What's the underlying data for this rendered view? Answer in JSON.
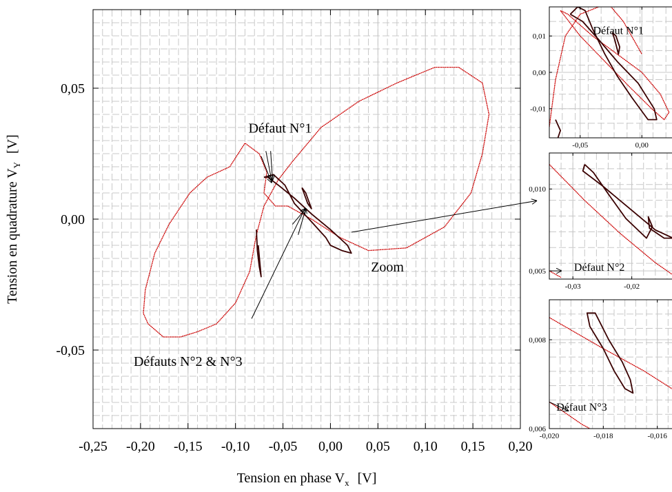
{
  "colors": {
    "curve": "#cc0000",
    "curve_dark": "#3a0000",
    "grid": "#c8c8c8",
    "axis": "#000000"
  },
  "chart_data": [
    {
      "type": "line",
      "panel": "main",
      "xlabel": "Tension en phase V",
      "xlabel_sub": "x",
      "xlabel_unit": "[V]",
      "ylabel": "Tension en quadrature V",
      "ylabel_sub": "Y",
      "ylabel_unit": "[V]",
      "xlim": [
        -0.25,
        0.2
      ],
      "ylim": [
        -0.08,
        0.08
      ],
      "xticks": [
        {
          "v": -0.25,
          "label": "-0,25"
        },
        {
          "v": -0.2,
          "label": "-0,20"
        },
        {
          "v": -0.15,
          "label": "-0,15"
        },
        {
          "v": -0.1,
          "label": "-0,10"
        },
        {
          "v": -0.05,
          "label": "-0,05"
        },
        {
          "v": 0.0,
          "label": "0,00"
        },
        {
          "v": 0.05,
          "label": "0,05"
        },
        {
          "v": 0.1,
          "label": "0,10"
        },
        {
          "v": 0.15,
          "label": "0,15"
        },
        {
          "v": 0.2,
          "label": "0,20"
        }
      ],
      "yticks": [
        {
          "v": -0.05,
          "label": "-0,05"
        },
        {
          "v": 0.0,
          "label": "0,00"
        },
        {
          "v": 0.05,
          "label": "0,05"
        }
      ],
      "grid": true,
      "series": [
        {
          "color": "#cc0000",
          "points": [
            [
              -0.067,
              0.018
            ],
            [
              -0.075,
              0.025
            ],
            [
              -0.09,
              0.029
            ],
            [
              -0.106,
              0.02
            ],
            [
              -0.13,
              0.016
            ],
            [
              -0.148,
              0.01
            ],
            [
              -0.17,
              -0.002
            ],
            [
              -0.185,
              -0.013
            ],
            [
              -0.195,
              -0.027
            ],
            [
              -0.197,
              -0.036
            ],
            [
              -0.192,
              -0.04
            ],
            [
              -0.176,
              -0.045
            ],
            [
              -0.158,
              -0.045
            ],
            [
              -0.14,
              -0.043
            ],
            [
              -0.12,
              -0.04
            ],
            [
              -0.1,
              -0.032
            ],
            [
              -0.085,
              -0.02
            ],
            [
              -0.08,
              -0.01
            ],
            [
              -0.078,
              -0.006
            ],
            [
              -0.07,
              0.005
            ],
            [
              -0.055,
              0.015
            ],
            [
              -0.04,
              0.022
            ],
            [
              -0.01,
              0.035
            ],
            [
              0.03,
              0.045
            ],
            [
              0.07,
              0.052
            ],
            [
              0.11,
              0.058
            ],
            [
              0.135,
              0.058
            ],
            [
              0.16,
              0.052
            ],
            [
              0.167,
              0.04
            ],
            [
              0.16,
              0.025
            ],
            [
              0.148,
              0.01
            ],
            [
              0.12,
              -0.003
            ],
            [
              0.08,
              -0.011
            ],
            [
              0.04,
              -0.012
            ],
            [
              0.01,
              -0.007
            ],
            [
              -0.02,
              0.0
            ],
            [
              -0.045,
              0.005
            ],
            [
              -0.058,
              0.005
            ],
            [
              -0.07,
              0.01
            ],
            [
              -0.067,
              0.018
            ]
          ]
        },
        {
          "color": "#3a0000",
          "points": [
            [
              -0.07,
              0.016
            ],
            [
              -0.06,
              0.017
            ],
            [
              -0.048,
              0.013
            ],
            [
              -0.038,
              0.006
            ],
            [
              -0.02,
              -0.001
            ],
            [
              -0.005,
              -0.007
            ],
            [
              0.0,
              -0.01
            ],
            [
              0.012,
              -0.012
            ],
            [
              0.022,
              -0.013
            ],
            [
              0.018,
              -0.01
            ],
            [
              0.0,
              -0.004
            ],
            [
              -0.02,
              0.002
            ],
            [
              -0.038,
              0.008
            ],
            [
              -0.055,
              0.013
            ],
            [
              -0.066,
              0.016
            ],
            [
              -0.07,
              0.016
            ]
          ]
        },
        {
          "color": "#3a0000",
          "points": [
            [
              -0.03,
              0.012
            ],
            [
              -0.026,
              0.01
            ],
            [
              -0.022,
              0.006
            ],
            [
              -0.02,
              0.004
            ],
            [
              -0.024,
              0.006
            ],
            [
              -0.028,
              0.01
            ],
            [
              -0.03,
              0.012
            ]
          ]
        },
        {
          "color": "#3a0000",
          "points": [
            [
              -0.078,
              -0.004
            ],
            [
              -0.077,
              -0.012
            ],
            [
              -0.075,
              -0.018
            ],
            [
              -0.073,
              -0.022
            ],
            [
              -0.074,
              -0.018
            ],
            [
              -0.076,
              -0.01
            ]
          ]
        }
      ],
      "annotations": [
        {
          "text": "Défaut N°1",
          "x": -0.053,
          "y": 0.033
        },
        {
          "text": "Défauts N°2 & N°3",
          "x": -0.15,
          "y": -0.056
        },
        {
          "text": "Zoom",
          "x": 0.06,
          "y": -0.02
        }
      ],
      "arrows": [
        {
          "x1": -0.073,
          "y1": 0.024,
          "x2": -0.062,
          "y2": 0.014
        },
        {
          "x1": -0.063,
          "y1": 0.026,
          "x2": -0.061,
          "y2": 0.015
        },
        {
          "x1": -0.068,
          "y1": 0.026,
          "x2": -0.062,
          "y2": 0.015
        },
        {
          "x1": -0.083,
          "y1": -0.038,
          "x2": -0.027,
          "y2": 0.004
        },
        {
          "x1": -0.04,
          "y1": -0.002,
          "x2": -0.026,
          "y2": 0.004
        },
        {
          "x1": -0.034,
          "y1": -0.006,
          "x2": -0.026,
          "y2": 0.004
        },
        {
          "x1": 0.022,
          "y1": -0.005,
          "x2": 0.217,
          "y2": 0.007
        }
      ]
    },
    {
      "type": "line",
      "panel": "zoom1",
      "xlim": [
        -0.075,
        0.03
      ],
      "ylim": [
        -0.018,
        0.018
      ],
      "xticks": [
        {
          "v": -0.05,
          "label": "-0,05"
        },
        {
          "v": 0.0,
          "label": "0,00"
        }
      ],
      "yticks": [
        {
          "v": -0.01,
          "label": "-0,01"
        },
        {
          "v": 0.0,
          "label": "0,00"
        },
        {
          "v": 0.01,
          "label": "0,01"
        }
      ],
      "grid": true,
      "series": [
        {
          "color": "#cc0000",
          "points": [
            [
              -0.075,
              -0.015
            ],
            [
              -0.07,
              -0.002
            ],
            [
              -0.062,
              0.01
            ],
            [
              -0.05,
              0.016
            ],
            [
              -0.035,
              0.018
            ],
            [
              -0.02,
              0.02
            ]
          ]
        },
        {
          "color": "#cc0000",
          "points": [
            [
              -0.03,
              0.02
            ],
            [
              -0.015,
              0.014
            ],
            [
              0.0,
              0.005
            ]
          ]
        },
        {
          "color": "#cc0000",
          "points": [
            [
              -0.066,
              0.017
            ],
            [
              -0.05,
              0.01
            ],
            [
              -0.03,
              0.003
            ],
            [
              -0.01,
              -0.004
            ],
            [
              0.008,
              -0.01
            ],
            [
              0.018,
              -0.013
            ],
            [
              0.022,
              -0.011
            ],
            [
              0.015,
              -0.006
            ],
            [
              0.0,
              0.0
            ],
            [
              -0.02,
              0.005
            ],
            [
              -0.04,
              0.01
            ],
            [
              -0.06,
              0.016
            ],
            [
              -0.066,
              0.017
            ]
          ]
        },
        {
          "color": "#3a0000",
          "points": [
            [
              -0.07,
              -0.013
            ],
            [
              -0.066,
              -0.016
            ],
            [
              -0.068,
              -0.018
            ]
          ]
        },
        {
          "color": "#3a0000",
          "points": [
            [
              -0.058,
              0.016
            ],
            [
              -0.052,
              0.018
            ],
            [
              -0.046,
              0.017
            ],
            [
              -0.04,
              0.012
            ],
            [
              -0.03,
              0.005
            ],
            [
              -0.02,
              -0.001
            ],
            [
              -0.008,
              -0.007
            ],
            [
              0.005,
              -0.013
            ],
            [
              0.012,
              -0.013
            ],
            [
              0.01,
              -0.01
            ],
            [
              -0.003,
              -0.003
            ],
            [
              -0.02,
              0.003
            ],
            [
              -0.035,
              0.009
            ],
            [
              -0.048,
              0.014
            ],
            [
              -0.058,
              0.016
            ]
          ]
        },
        {
          "color": "#3a0000",
          "points": [
            [
              -0.024,
              0.011
            ],
            [
              -0.022,
              0.009
            ],
            [
              -0.019,
              0.005
            ],
            [
              -0.018,
              0.007
            ],
            [
              -0.021,
              0.01
            ],
            [
              -0.024,
              0.011
            ]
          ]
        }
      ],
      "annotations": [
        {
          "text": "Défaut N°1",
          "x": -0.019,
          "y": 0.0105
        }
      ],
      "arrows": []
    },
    {
      "type": "line",
      "panel": "zoom2",
      "xlim": [
        -0.034,
        -0.012
      ],
      "ylim": [
        0.0045,
        0.0122
      ],
      "xticks": [
        {
          "v": -0.03,
          "label": "-0,03"
        },
        {
          "v": -0.02,
          "label": "-0,02"
        }
      ],
      "yticks": [
        {
          "v": 0.005,
          "label": "0,005"
        },
        {
          "v": 0.01,
          "label": "0,010"
        }
      ],
      "grid": true,
      "series": [
        {
          "color": "#cc0000",
          "points": [
            [
              -0.034,
              0.0115
            ],
            [
              -0.028,
              0.0093
            ],
            [
              -0.022,
              0.0073
            ],
            [
              -0.016,
              0.0055
            ],
            [
              -0.012,
              0.0045
            ]
          ]
        },
        {
          "color": "#cc0000",
          "points": [
            [
              -0.034,
              0.005
            ],
            [
              -0.032,
              0.0046
            ]
          ]
        },
        {
          "color": "#3a0000",
          "points": [
            [
              -0.028,
              0.0115
            ],
            [
              -0.0265,
              0.011
            ],
            [
              -0.024,
              0.0097
            ],
            [
              -0.021,
              0.0082
            ],
            [
              -0.0175,
              0.007
            ],
            [
              -0.0165,
              0.0077
            ],
            [
              -0.0172,
              0.0083
            ],
            [
              -0.017,
              0.0076
            ],
            [
              -0.0145,
              0.007
            ],
            [
              -0.013,
              0.007
            ],
            [
              -0.016,
              0.0075
            ],
            [
              -0.021,
              0.009
            ],
            [
              -0.025,
              0.0102
            ],
            [
              -0.0283,
              0.0111
            ],
            [
              -0.028,
              0.0115
            ]
          ]
        }
      ],
      "annotations": [
        {
          "text": "Défaut N°2",
          "x": -0.0255,
          "y": 0.005
        }
      ],
      "arrows": [
        {
          "x1": -0.034,
          "y1": 0.005,
          "x2": -0.032,
          "y2": 0.005
        }
      ]
    },
    {
      "type": "line",
      "panel": "zoom3",
      "xlim": [
        -0.02,
        -0.0152
      ],
      "ylim": [
        0.006,
        0.0089
      ],
      "xticks": [
        {
          "v": -0.02,
          "label": "-0,020"
        },
        {
          "v": -0.018,
          "label": "-0,018"
        },
        {
          "v": -0.016,
          "label": "-0,016"
        }
      ],
      "yticks": [
        {
          "v": 0.006,
          "label": "0,006"
        },
        {
          "v": 0.008,
          "label": "0,008"
        }
      ],
      "grid": true,
      "series": [
        {
          "color": "#cc0000",
          "points": [
            [
              -0.02,
              0.0085
            ],
            [
              -0.018,
              0.0078
            ],
            [
              -0.0165,
              0.0073
            ],
            [
              -0.0152,
              0.0068
            ]
          ]
        },
        {
          "color": "#cc0000",
          "points": [
            [
              -0.02,
              0.0066
            ],
            [
              -0.0188,
              0.0061
            ],
            [
              -0.0185,
              0.006
            ]
          ]
        },
        {
          "color": "#3a0000",
          "points": [
            [
              -0.0185,
              0.0086
            ],
            [
              -0.0183,
              0.0086
            ],
            [
              -0.0178,
              0.008
            ],
            [
              -0.0173,
              0.0075
            ],
            [
              -0.017,
              0.0071
            ],
            [
              -0.0169,
              0.0068
            ],
            [
              -0.0172,
              0.0069
            ],
            [
              -0.0176,
              0.0073
            ],
            [
              -0.018,
              0.0078
            ],
            [
              -0.0185,
              0.0083
            ],
            [
              -0.0186,
              0.0086
            ],
            [
              -0.0185,
              0.0086
            ]
          ]
        }
      ],
      "annotations": [
        {
          "text": "Défaut N°3",
          "x": -0.0188,
          "y": 0.0064
        }
      ],
      "arrows": [
        {
          "x1": -0.02,
          "y1": 0.0066,
          "x2": -0.0193,
          "y2": 0.0064
        }
      ]
    }
  ]
}
